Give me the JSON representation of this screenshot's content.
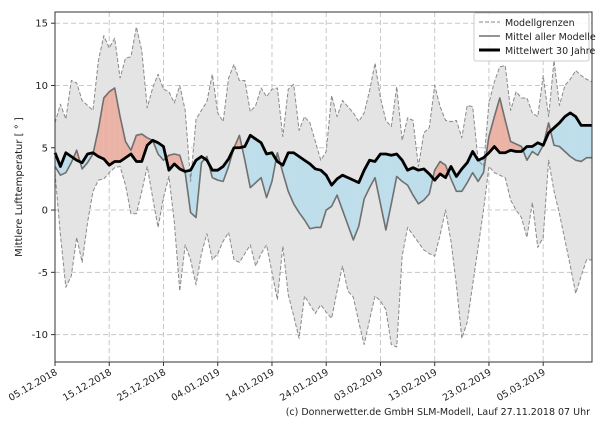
{
  "chart_data": {
    "type": "area",
    "title": "",
    "ylabel": "Mittlere Lufttemperatur [ ° ]",
    "xlabel": "",
    "ylim": [
      -12.2,
      15.9
    ],
    "xlim_days": [
      0,
      99
    ],
    "start_date": "05.12.2018",
    "grid": true,
    "legend_position": "top-right",
    "yticks": [
      -10,
      -5,
      0,
      5,
      10,
      15
    ],
    "xticks": [
      {
        "day": 0,
        "label": "05.12.2018"
      },
      {
        "day": 10,
        "label": "15.12.2018"
      },
      {
        "day": 20,
        "label": "25.12.2018"
      },
      {
        "day": 30,
        "label": "04.01.2019"
      },
      {
        "day": 40,
        "label": "14.01.2019"
      },
      {
        "day": 50,
        "label": "24.01.2019"
      },
      {
        "day": 60,
        "label": "03.02.2019"
      },
      {
        "day": 70,
        "label": "13.02.2019"
      },
      {
        "day": 80,
        "label": "23.02.2019"
      },
      {
        "day": 90,
        "label": "05.03.2019"
      }
    ],
    "legend": [
      "Modellgrenzen",
      "Mittel aller Modelle",
      "Mittelwert 30 Jahre"
    ],
    "colors": {
      "band": "#e4e4e4",
      "bound_line": "#8a8a8a",
      "mean_line": "#707070",
      "clim_line": "#000000",
      "warm_fill": "#ebb2a6",
      "cold_fill": "#bddeea"
    },
    "series": [
      {
        "name": "Modellgrenzen (max)",
        "values": [
          7.0,
          8.5,
          7.3,
          10.4,
          10.2,
          8.8,
          8.4,
          8.0,
          12.0,
          14.0,
          13.0,
          13.8,
          10.6,
          12.2,
          12.3,
          14.7,
          12.8,
          8.2,
          9.8,
          10.9,
          9.7,
          9.5,
          8.6,
          10.0,
          8.0,
          2.3,
          7.3,
          8.0,
          8.7,
          10.9,
          7.8,
          7.1,
          10.6,
          11.7,
          10.4,
          10.4,
          7.9,
          8.4,
          9.8,
          9.1,
          9.7,
          9.8,
          5.9,
          9.7,
          10.1,
          6.4,
          7.5,
          7.0,
          5.5,
          4.0,
          4.7,
          9.2,
          7.5,
          8.8,
          8.3,
          7.8,
          7.1,
          7.8,
          9.6,
          11.8,
          9.0,
          7.2,
          6.7,
          9.9,
          5.6,
          7.4,
          7.2,
          3.5,
          6.2,
          6.6,
          10.0,
          8.3,
          7.2,
          7.1,
          7.2,
          5.8,
          8.4,
          8.3,
          4.0,
          3.5,
          8.6,
          10.3,
          11.5,
          11.6,
          8.0,
          9.5,
          9.0,
          9.0,
          7.8,
          7.5,
          10.8,
          7.5,
          12.0,
          8.4,
          10.0,
          10.5,
          11.2,
          10.8,
          10.5,
          10.3
        ]
      },
      {
        "name": "Modellgrenzen (min)",
        "values": [
          3.0,
          -2.0,
          -6.2,
          -5.3,
          -2.2,
          -4.2,
          -1.0,
          1.5,
          2.4,
          2.5,
          3.0,
          3.4,
          3.5,
          2.0,
          -0.3,
          -0.3,
          1.5,
          3.5,
          1.0,
          -1.4,
          1.0,
          2.7,
          -1.0,
          -6.5,
          -2.8,
          -4.0,
          -6.0,
          -3.5,
          -1.9,
          -4.0,
          -3.5,
          -2.5,
          -1.8,
          -4.0,
          -4.2,
          -3.5,
          -2.8,
          -4.5,
          -3.5,
          -2.8,
          -5.0,
          -7.2,
          -2.9,
          -6.8,
          -8.5,
          -10.3,
          -6.9,
          -7.6,
          -8.3,
          -7.6,
          -8.2,
          -8.7,
          -6.5,
          -4.5,
          -6.5,
          -7.0,
          -9.0,
          -10.8,
          -8.8,
          -6.9,
          -7.3,
          -8.0,
          -10.8,
          -11.0,
          -3.7,
          -1.4,
          -2.0,
          -2.6,
          -3.2,
          -3.5,
          -3.7,
          -2.0,
          0.0,
          -2.5,
          -6.0,
          -10.3,
          -9.0,
          -6.0,
          -3.0,
          0.0,
          3.5,
          3.0,
          2.8,
          2.6,
          0.8,
          0.0,
          -0.6,
          -2.2,
          0.6,
          -3.0,
          -2.2,
          4.0,
          1.5,
          -0.3,
          -2.4,
          -4.5,
          -6.7,
          -5.3,
          -4.0,
          -4.0
        ]
      },
      {
        "name": "Mittel aller Modelle",
        "values": [
          3.5,
          2.8,
          3.0,
          3.8,
          4.8,
          3.3,
          3.8,
          4.5,
          6.5,
          9.0,
          9.5,
          9.8,
          7.5,
          5.5,
          4.8,
          6.0,
          6.1,
          5.8,
          5.6,
          4.5,
          4.0,
          4.4,
          4.5,
          4.4,
          3.0,
          -0.2,
          -0.6,
          3.8,
          4.3,
          2.6,
          2.4,
          2.3,
          3.5,
          5.0,
          6.0,
          4.0,
          1.8,
          2.2,
          2.6,
          1.0,
          2.3,
          4.6,
          3.0,
          1.5,
          0.5,
          -0.2,
          -0.8,
          -1.5,
          -1.4,
          -1.4,
          0.0,
          0.3,
          1.2,
          0.0,
          -1.2,
          -2.4,
          -1.3,
          0.9,
          1.8,
          2.6,
          0.5,
          -1.6,
          0.5,
          2.7,
          2.3,
          2.0,
          1.2,
          0.5,
          0.8,
          1.3,
          3.2,
          3.9,
          3.6,
          2.5,
          1.5,
          1.5,
          2.2,
          3.0,
          2.3,
          3.0,
          5.9,
          7.5,
          9.0,
          7.2,
          5.5,
          5.3,
          5.1,
          4.0,
          4.7,
          4.4,
          5.2,
          7.0,
          5.2,
          5.1,
          4.7,
          4.3,
          4.0,
          3.9,
          4.2,
          4.2
        ]
      },
      {
        "name": "Mittelwert 30 Jahre",
        "values": [
          4.6,
          3.5,
          4.6,
          4.3,
          4.0,
          3.8,
          4.5,
          4.6,
          4.3,
          4.1,
          3.6,
          3.9,
          3.9,
          4.2,
          4.5,
          3.9,
          3.9,
          5.2,
          5.6,
          5.4,
          5.1,
          3.2,
          3.7,
          3.3,
          3.1,
          3.2,
          4.0,
          4.3,
          4.0,
          3.2,
          3.2,
          3.5,
          4.1,
          5.0,
          5.0,
          5.1,
          6.0,
          5.7,
          5.4,
          4.5,
          4.6,
          3.9,
          3.6,
          4.6,
          4.6,
          4.3,
          4.0,
          3.7,
          3.3,
          3.2,
          2.8,
          2.0,
          2.5,
          2.8,
          2.6,
          2.4,
          2.2,
          3.2,
          4.0,
          3.9,
          4.5,
          4.5,
          4.4,
          4.5,
          4.0,
          3.2,
          3.4,
          3.2,
          3.3,
          2.9,
          2.4,
          2.9,
          2.6,
          3.5,
          2.7,
          3.3,
          3.8,
          4.7,
          4.0,
          4.2,
          4.6,
          5.1,
          4.6,
          4.6,
          4.8,
          4.7,
          4.7,
          5.1,
          5.1,
          5.4,
          5.2,
          6.2,
          6.6,
          7.0,
          7.5,
          7.8,
          7.5,
          6.8,
          6.8,
          6.8
        ]
      }
    ]
  },
  "footer": "(c) Donnerwetter.de GmbH SLM-Modell, Lauf 27.11.2018 07 Uhr"
}
